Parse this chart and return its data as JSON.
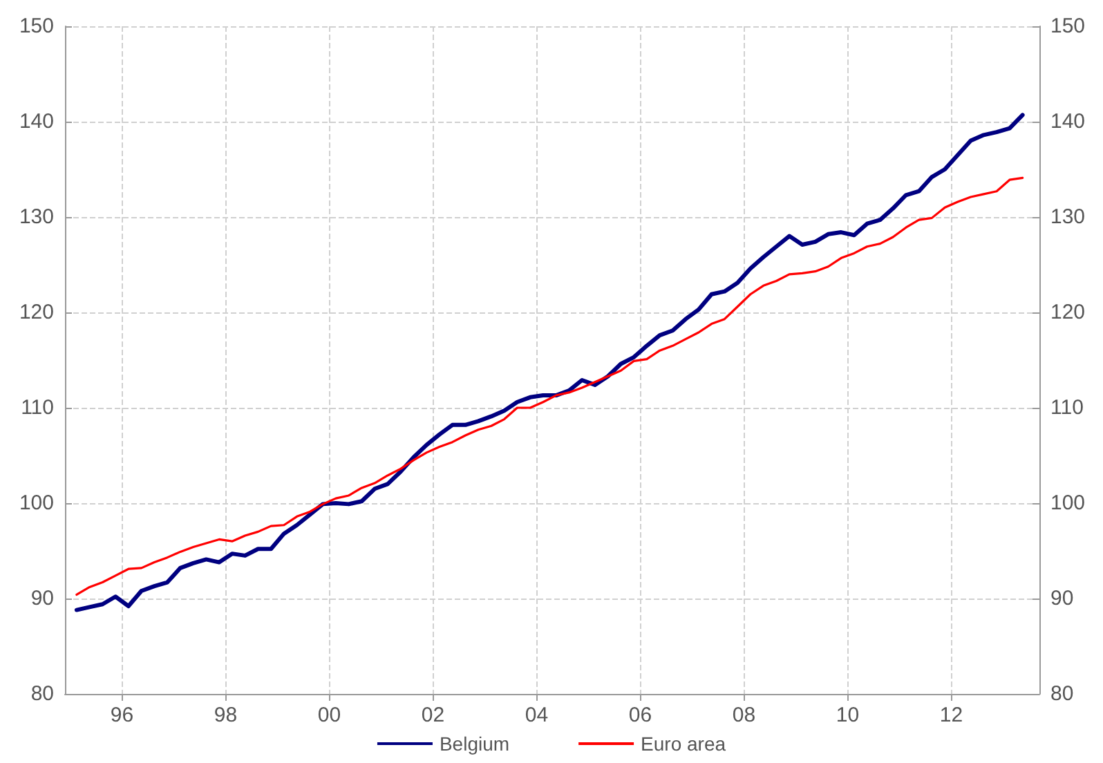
{
  "chart_data": {
    "type": "line",
    "x": [
      1995.125,
      1995.375,
      1995.625,
      1995.875,
      1996.125,
      1996.375,
      1996.625,
      1996.875,
      1997.125,
      1997.375,
      1997.625,
      1997.875,
      1998.125,
      1998.375,
      1998.625,
      1998.875,
      1999.125,
      1999.375,
      1999.625,
      1999.875,
      2000.125,
      2000.375,
      2000.625,
      2000.875,
      2001.125,
      2001.375,
      2001.625,
      2001.875,
      2002.125,
      2002.375,
      2002.625,
      2002.875,
      2003.125,
      2003.375,
      2003.625,
      2003.875,
      2004.125,
      2004.375,
      2004.625,
      2004.875,
      2005.125,
      2005.375,
      2005.625,
      2005.875,
      2006.125,
      2006.375,
      2006.625,
      2006.875,
      2007.125,
      2007.375,
      2007.625,
      2007.875,
      2008.125,
      2008.375,
      2008.625,
      2008.875,
      2009.125,
      2009.375,
      2009.625,
      2009.875,
      2010.125,
      2010.375,
      2010.625,
      2010.875,
      2011.125,
      2011.375,
      2011.625,
      2011.875,
      2012.125,
      2012.375,
      2012.625,
      2012.875,
      2013.125,
      2013.375
    ],
    "series": [
      {
        "name": "Belgium",
        "color": "#000080",
        "values": [
          88.8,
          89.1,
          89.4,
          90.2,
          89.2,
          90.8,
          91.3,
          91.7,
          93.2,
          93.7,
          94.1,
          93.8,
          94.7,
          94.5,
          95.2,
          95.2,
          96.8,
          97.7,
          98.8,
          99.9,
          100.0,
          99.9,
          100.2,
          101.5,
          102.0,
          103.3,
          104.8,
          106.1,
          107.2,
          108.2,
          108.2,
          108.6,
          109.1,
          109.7,
          110.6,
          111.1,
          111.3,
          111.3,
          111.8,
          112.9,
          112.4,
          113.3,
          114.6,
          115.3,
          116.5,
          117.6,
          118.1,
          119.3,
          120.3,
          121.9,
          122.2,
          123.1,
          124.6,
          125.8,
          126.9,
          128.0,
          127.1,
          127.4,
          128.2,
          128.4,
          128.1,
          129.3,
          129.7,
          130.9,
          132.3,
          132.7,
          134.2,
          135.0,
          136.5,
          138.0,
          138.6,
          138.9,
          139.3,
          140.7
        ]
      },
      {
        "name": "Euro area",
        "color": "#ff0000",
        "values": [
          90.4,
          91.2,
          91.7,
          92.4,
          93.1,
          93.2,
          93.8,
          94.3,
          94.9,
          95.4,
          95.8,
          96.2,
          96.0,
          96.6,
          97.0,
          97.6,
          97.7,
          98.6,
          99.1,
          99.9,
          100.5,
          100.8,
          101.6,
          102.1,
          102.9,
          103.6,
          104.5,
          105.3,
          105.9,
          106.4,
          107.1,
          107.7,
          108.1,
          108.8,
          110.0,
          110.0,
          110.6,
          111.3,
          111.6,
          112.1,
          112.7,
          113.3,
          113.9,
          114.9,
          115.1,
          116.0,
          116.5,
          117.2,
          117.9,
          118.8,
          119.3,
          120.6,
          121.9,
          122.8,
          123.3,
          124.0,
          124.1,
          124.3,
          124.8,
          125.7,
          126.2,
          126.9,
          127.2,
          127.9,
          128.9,
          129.7,
          129.9,
          131.0,
          131.6,
          132.1,
          132.4,
          132.7,
          133.9,
          134.1
        ]
      }
    ],
    "xlim": [
      1994.9,
      2013.7
    ],
    "xticks": [
      {
        "value": 1996,
        "label": "96"
      },
      {
        "value": 1998,
        "label": "98"
      },
      {
        "value": 2000,
        "label": "00"
      },
      {
        "value": 2002,
        "label": "02"
      },
      {
        "value": 2004,
        "label": "04"
      },
      {
        "value": 2006,
        "label": "06"
      },
      {
        "value": 2008,
        "label": "08"
      },
      {
        "value": 2010,
        "label": "10"
      },
      {
        "value": 2012,
        "label": "12"
      }
    ],
    "ylim": [
      80,
      150
    ],
    "yticks": [
      80,
      90,
      100,
      110,
      120,
      130,
      140,
      150
    ],
    "y2lim": [
      80,
      150
    ],
    "y2ticks": [
      80,
      90,
      100,
      110,
      120,
      130,
      140,
      150
    ],
    "grid": true,
    "legend": "bottom",
    "marker": "none",
    "line_style": "solid"
  }
}
